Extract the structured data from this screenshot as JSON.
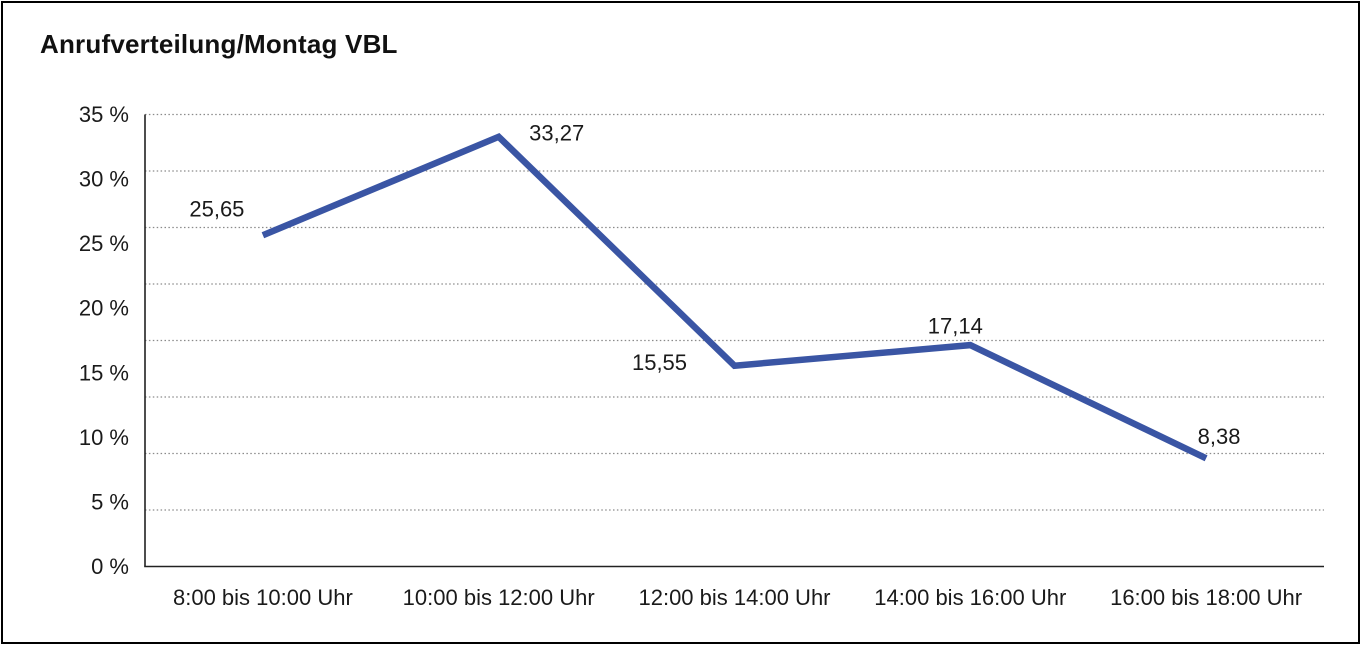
{
  "title": "Anrufverteilung/Montag VBL",
  "colors": {
    "line": "#3a55a4",
    "grid": "#8a8a8a",
    "axis": "#222222",
    "text": "#1a1a1a",
    "background": "#ffffff",
    "border": "#000000"
  },
  "chart_data": {
    "type": "line",
    "title": "Anrufverteilung/Montag VBL",
    "categories": [
      "8:00 bis 10:00 Uhr",
      "10:00 bis 12:00 Uhr",
      "12:00 bis 14:00 Uhr",
      "14:00 bis 16:00 Uhr",
      "16:00 bis 18:00 Uhr"
    ],
    "values": [
      25.65,
      33.27,
      15.55,
      17.14,
      8.38
    ],
    "data_labels": [
      "25,65",
      "33,27",
      "15,55",
      "17,14",
      "8,38"
    ],
    "xlabel": "",
    "ylabel": "",
    "ylim": [
      0,
      35
    ],
    "y_tick_values": [
      0,
      5,
      10,
      15,
      20,
      25,
      30,
      35
    ],
    "y_tick_labels": [
      "0 %",
      "5 %",
      "10 %",
      "15 %",
      "20 %",
      "25 %",
      "30 %",
      "35 %"
    ],
    "y_grid_divisions": 8,
    "grid_style": "dotted horizontal",
    "legend": "none"
  }
}
